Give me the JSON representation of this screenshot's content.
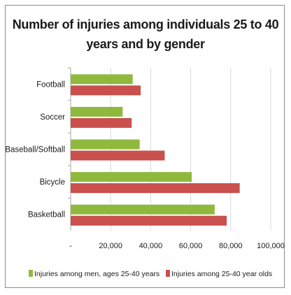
{
  "chart_data": {
    "type": "bar",
    "orientation": "horizontal",
    "title_lines": [
      "Number of injuries among individuals 25 to 40",
      "years and by gender"
    ],
    "categories": [
      "Football",
      "Soccer",
      "Baseball/Softball",
      "Bicycle",
      "Basketball"
    ],
    "series": [
      {
        "name": "Injuries among men, ages 25-40 years",
        "color": "#8fb93d",
        "values": [
          31000,
          26000,
          34500,
          60500,
          72000
        ]
      },
      {
        "name": "Injuries among 25-40 year olds",
        "color": "#c9504c",
        "values": [
          35000,
          30500,
          47000,
          84500,
          78000
        ]
      }
    ],
    "xlim": [
      0,
      100000
    ],
    "x_ticks": [
      {
        "value": 0,
        "label": "-"
      },
      {
        "value": 20000,
        "label": "20,000"
      },
      {
        "value": 40000,
        "label": "40,000"
      },
      {
        "value": 60000,
        "label": "60,000"
      },
      {
        "value": 80000,
        "label": "80,000"
      },
      {
        "value": 100000,
        "label": "100,000"
      }
    ],
    "grid": true,
    "legend_position": "bottom"
  }
}
